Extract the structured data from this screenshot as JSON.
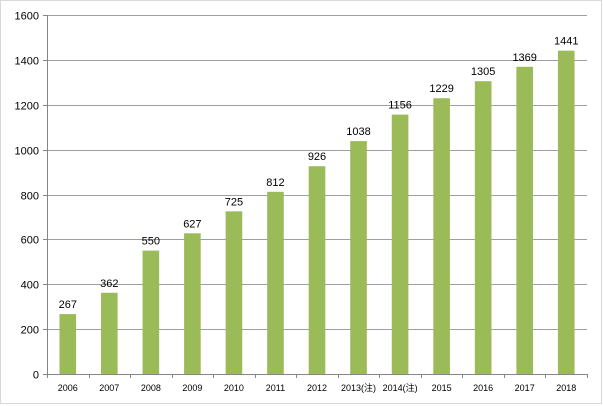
{
  "chart_data": {
    "type": "bar",
    "title": "",
    "xlabel": "",
    "ylabel": "",
    "categories": [
      "2006",
      "2007",
      "2008",
      "2009",
      "2010",
      "2011",
      "2012",
      "2013(注)",
      "2014(注)",
      "2015",
      "2016",
      "2017",
      "2018"
    ],
    "values": [
      267,
      362,
      550,
      627,
      725,
      812,
      926,
      1038,
      1156,
      1229,
      1305,
      1369,
      1441
    ],
    "data_labels": [
      "267",
      "362",
      "550",
      "627",
      "725",
      "812",
      "926",
      "1038",
      "1156",
      "1229",
      "1305",
      "1369",
      "1441"
    ],
    "ylim": [
      0,
      1600
    ],
    "y_ticks": [
      0,
      200,
      400,
      600,
      800,
      1000,
      1200,
      1400,
      1600
    ],
    "y_tick_labels": [
      "0",
      "200",
      "400",
      "600",
      "800",
      "1000",
      "1200",
      "1400",
      "1600"
    ],
    "grid": true,
    "legend": "none",
    "colors": {
      "bar": "#9bbb59",
      "grid": "#9aa0a6",
      "axis": "#868686",
      "text": "#000000"
    }
  }
}
